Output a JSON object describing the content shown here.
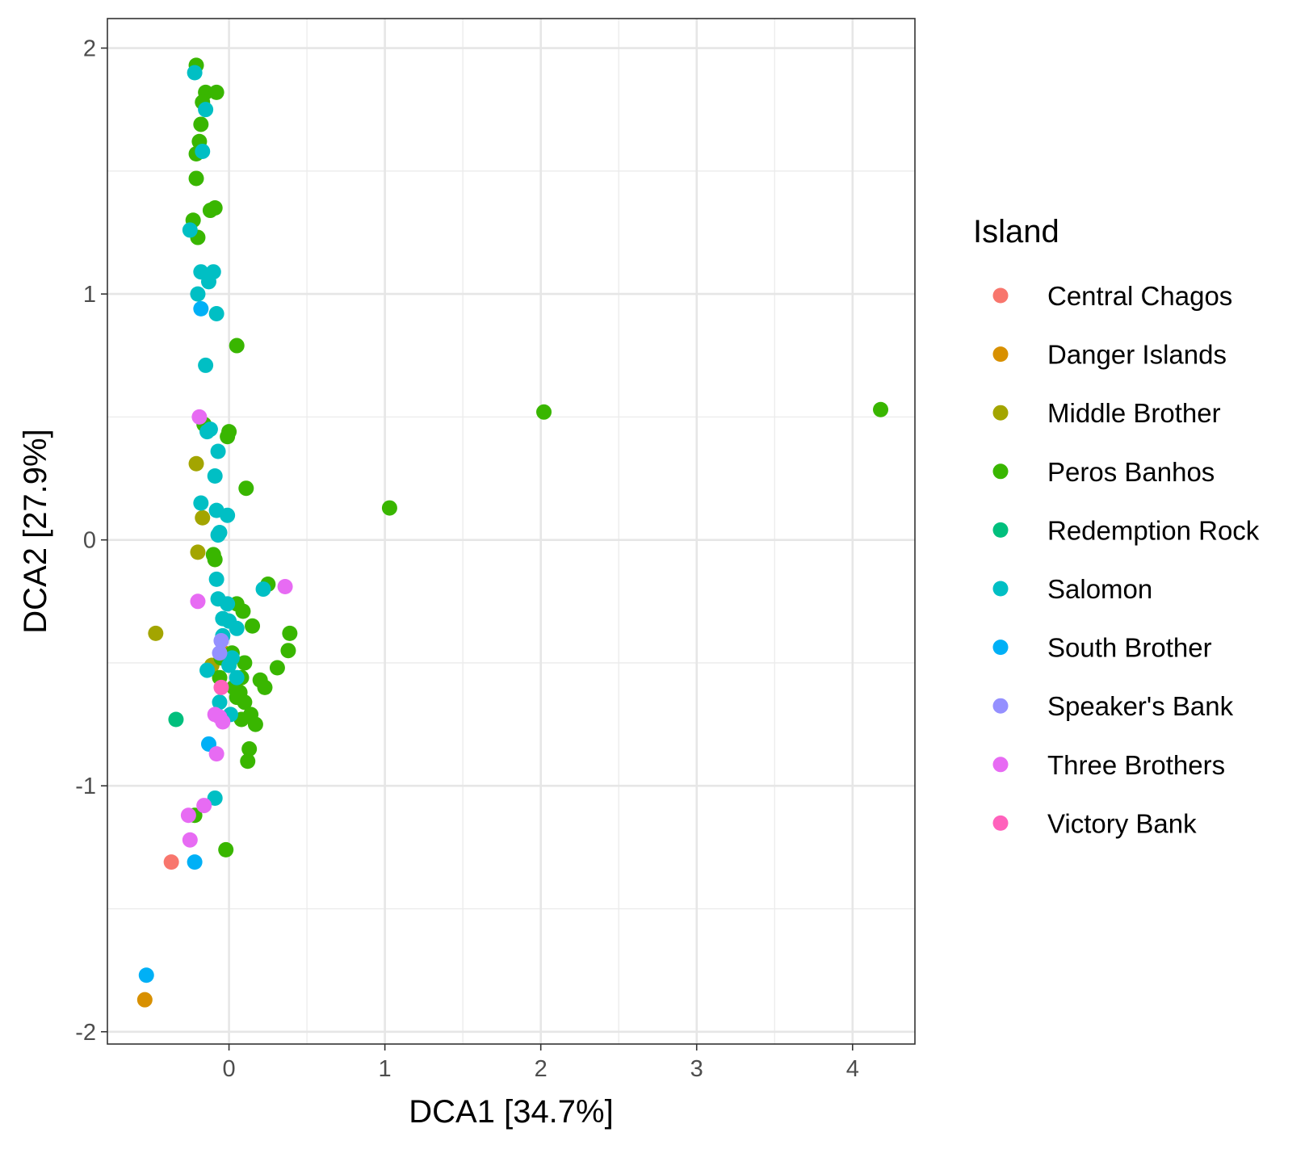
{
  "chart_data": {
    "type": "scatter",
    "xlabel": "DCA1   [34.7%]",
    "ylabel": "DCA2   [27.9%]",
    "xlim": [
      -0.78,
      4.4
    ],
    "ylim": [
      -2.05,
      2.12
    ],
    "x_ticks": [
      0,
      1,
      2,
      3,
      4
    ],
    "y_ticks": [
      -2,
      -1,
      0,
      1,
      2
    ],
    "x_tick_labels": [
      "0",
      "1",
      "2",
      "3",
      "4"
    ],
    "y_tick_labels": [
      "-2",
      "-1",
      "0",
      "1",
      "2"
    ],
    "grid": true,
    "legend": {
      "title": "Island",
      "position": "right"
    },
    "series": [
      {
        "name": "Central Chagos",
        "color": "#F8766D",
        "points": [
          [
            -0.37,
            -1.31
          ]
        ]
      },
      {
        "name": "Danger Islands",
        "color": "#D89000",
        "points": [
          [
            -0.54,
            -1.87
          ],
          [
            -0.03,
            -0.46
          ]
        ]
      },
      {
        "name": "Middle Brother",
        "color": "#A3A500",
        "points": [
          [
            -0.47,
            -0.38
          ],
          [
            -0.21,
            0.31
          ],
          [
            -0.17,
            0.09
          ],
          [
            -0.2,
            -0.05
          ],
          [
            -0.11,
            -0.51
          ]
        ]
      },
      {
        "name": "Peros Banhos",
        "color": "#39B600",
        "points": [
          [
            -0.21,
            1.93
          ],
          [
            -0.15,
            1.82
          ],
          [
            -0.08,
            1.82
          ],
          [
            -0.17,
            1.78
          ],
          [
            -0.18,
            1.69
          ],
          [
            -0.19,
            1.62
          ],
          [
            -0.21,
            1.57
          ],
          [
            -0.21,
            1.47
          ],
          [
            -0.09,
            1.35
          ],
          [
            -0.12,
            1.34
          ],
          [
            -0.23,
            1.3
          ],
          [
            -0.2,
            1.23
          ],
          [
            0.05,
            0.79
          ],
          [
            -0.16,
            0.47
          ],
          [
            0.0,
            0.44
          ],
          [
            -0.01,
            0.42
          ],
          [
            0.11,
            0.21
          ],
          [
            -0.1,
            -0.06
          ],
          [
            -0.09,
            -0.08
          ],
          [
            0.25,
            -0.18
          ],
          [
            0.05,
            -0.26
          ],
          [
            0.09,
            -0.29
          ],
          [
            0.15,
            -0.35
          ],
          [
            0.39,
            -0.38
          ],
          [
            0.38,
            -0.45
          ],
          [
            0.02,
            -0.46
          ],
          [
            -0.05,
            -0.48
          ],
          [
            0.1,
            -0.5
          ],
          [
            0.31,
            -0.52
          ],
          [
            -0.06,
            -0.56
          ],
          [
            0.08,
            -0.56
          ],
          [
            0.2,
            -0.57
          ],
          [
            0.23,
            -0.6
          ],
          [
            0.03,
            -0.6
          ],
          [
            0.07,
            -0.62
          ],
          [
            0.05,
            -0.64
          ],
          [
            0.1,
            -0.66
          ],
          [
            0.14,
            -0.71
          ],
          [
            0.08,
            -0.73
          ],
          [
            0.17,
            -0.75
          ],
          [
            0.13,
            -0.85
          ],
          [
            0.12,
            -0.9
          ],
          [
            -0.22,
            -1.12
          ],
          [
            -0.02,
            -1.26
          ],
          [
            1.03,
            0.13
          ],
          [
            2.02,
            0.52
          ],
          [
            4.18,
            0.53
          ]
        ]
      },
      {
        "name": "Redemption Rock",
        "color": "#00BF7D",
        "points": [
          [
            -0.34,
            -0.73
          ]
        ]
      },
      {
        "name": "Salomon",
        "color": "#00BFC4",
        "points": [
          [
            -0.22,
            1.9
          ],
          [
            -0.15,
            1.75
          ],
          [
            -0.17,
            1.58
          ],
          [
            -0.25,
            1.26
          ],
          [
            -0.18,
            1.09
          ],
          [
            -0.1,
            1.09
          ],
          [
            -0.13,
            1.05
          ],
          [
            -0.2,
            1.0
          ],
          [
            -0.08,
            0.92
          ],
          [
            -0.15,
            0.71
          ],
          [
            -0.12,
            0.45
          ],
          [
            -0.14,
            0.44
          ],
          [
            -0.07,
            0.36
          ],
          [
            -0.09,
            0.26
          ],
          [
            -0.18,
            0.15
          ],
          [
            -0.08,
            0.12
          ],
          [
            -0.01,
            0.1
          ],
          [
            -0.06,
            0.03
          ],
          [
            -0.07,
            0.02
          ],
          [
            -0.08,
            -0.16
          ],
          [
            0.22,
            -0.2
          ],
          [
            -0.07,
            -0.24
          ],
          [
            -0.01,
            -0.26
          ],
          [
            -0.04,
            -0.32
          ],
          [
            0.0,
            -0.33
          ],
          [
            0.05,
            -0.36
          ],
          [
            -0.04,
            -0.39
          ],
          [
            0.02,
            -0.48
          ],
          [
            0.0,
            -0.51
          ],
          [
            -0.14,
            -0.53
          ],
          [
            0.05,
            -0.56
          ],
          [
            -0.06,
            -0.66
          ],
          [
            0.01,
            -0.71
          ],
          [
            -0.09,
            -1.05
          ]
        ]
      },
      {
        "name": "South Brother",
        "color": "#00B0F6",
        "points": [
          [
            -0.18,
            0.94
          ],
          [
            -0.13,
            -0.83
          ],
          [
            -0.22,
            -1.31
          ],
          [
            -0.53,
            -1.77
          ]
        ]
      },
      {
        "name": "Speaker's Bank",
        "color": "#9590FF",
        "points": [
          [
            -0.05,
            -0.41
          ],
          [
            -0.06,
            -0.46
          ]
        ]
      },
      {
        "name": "Three Brothers",
        "color": "#E76BF3",
        "points": [
          [
            -0.19,
            0.5
          ],
          [
            0.36,
            -0.19
          ],
          [
            -0.2,
            -0.25
          ],
          [
            -0.09,
            -0.71
          ],
          [
            -0.06,
            -0.72
          ],
          [
            -0.04,
            -0.74
          ],
          [
            -0.08,
            -0.87
          ],
          [
            -0.16,
            -1.08
          ],
          [
            -0.26,
            -1.12
          ],
          [
            -0.25,
            -1.22
          ]
        ]
      },
      {
        "name": "Victory Bank",
        "color": "#FF62BC",
        "points": [
          [
            -0.05,
            -0.6
          ]
        ]
      }
    ]
  }
}
